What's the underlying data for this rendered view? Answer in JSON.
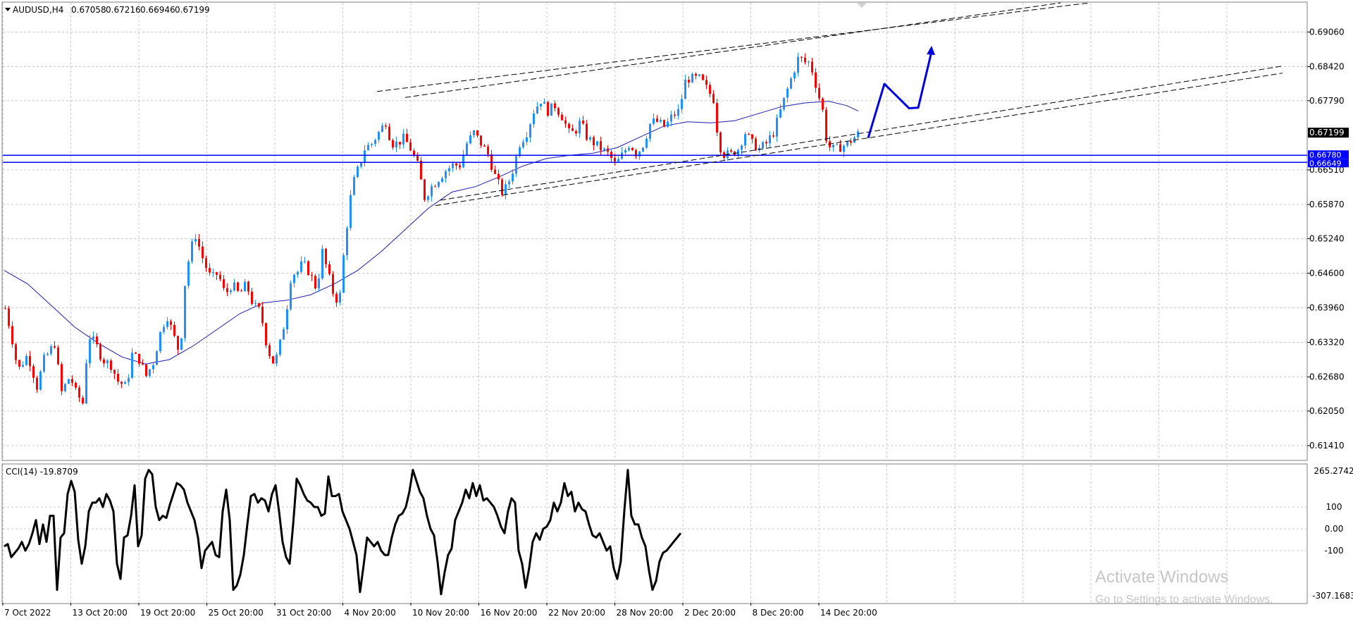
{
  "header": {
    "symbol": "AUDUSD,H4",
    "open": "0.67058",
    "high": "0.67216",
    "low": "0.66946",
    "close": "0.67199"
  },
  "indicator": {
    "label": "CCI(14) -19.8709",
    "scale_labels": [
      "265.2742",
      "100",
      "0.00",
      "-100",
      "-307.1683"
    ]
  },
  "price_scale": {
    "labels": [
      "0.69060",
      "0.68420",
      "0.67790",
      "0.66510",
      "0.65870",
      "0.65240",
      "0.64600",
      "0.63960",
      "0.63320",
      "0.62680",
      "0.62050",
      "0.61410"
    ],
    "current_price": "0.67199",
    "level_1": "0.66780",
    "level_2": "0.66649"
  },
  "time_axis": {
    "labels": [
      "7 Oct 2022",
      "13 Oct 20:00",
      "19 Oct 20:00",
      "25 Oct 20:00",
      "31 Oct 20:00",
      "4 Nov 20:00",
      "10 Nov 20:00",
      "16 Nov 20:00",
      "22 Nov 20:00",
      "28 Nov 20:00",
      "2 Dec 20:00",
      "8 Dec 20:00",
      "14 Dec 20:00"
    ]
  },
  "watermark": {
    "line1": "Activate Windows",
    "line2": "Go to Settings to activate Windows."
  },
  "colors": {
    "bull": "#1e90ff",
    "bear": "#ff0000",
    "ma": "#1c1cb4",
    "hline": "#0000ff",
    "channel": "#000000",
    "cci": "#000000",
    "grid": "#c8c8c8",
    "arrow": "#0000dd"
  },
  "chart_data": {
    "type": "candlestick",
    "symbol": "AUDUSD",
    "timeframe": "H4",
    "price_range": [
      0.6115,
      0.696
    ],
    "horizontal_levels": [
      0.6678,
      0.66649
    ],
    "last_price": 0.67199,
    "moving_average": [
      [
        0,
        0.6465
      ],
      [
        20,
        0.644
      ],
      [
        40,
        0.64
      ],
      [
        60,
        0.636
      ],
      [
        80,
        0.633
      ],
      [
        100,
        0.6305
      ],
      [
        120,
        0.6292
      ],
      [
        140,
        0.63
      ],
      [
        160,
        0.6325
      ],
      [
        180,
        0.6355
      ],
      [
        200,
        0.6385
      ],
      [
        220,
        0.6405
      ],
      [
        240,
        0.641
      ],
      [
        260,
        0.642
      ],
      [
        280,
        0.644
      ],
      [
        300,
        0.6465
      ],
      [
        320,
        0.65
      ],
      [
        340,
        0.654
      ],
      [
        360,
        0.658
      ],
      [
        380,
        0.661
      ],
      [
        400,
        0.662
      ],
      [
        420,
        0.6638
      ],
      [
        440,
        0.6658
      ],
      [
        460,
        0.6672
      ],
      [
        480,
        0.6678
      ],
      [
        500,
        0.6682
      ],
      [
        520,
        0.6692
      ],
      [
        540,
        0.6712
      ],
      [
        560,
        0.6732
      ],
      [
        580,
        0.674
      ],
      [
        600,
        0.6738
      ],
      [
        620,
        0.6742
      ],
      [
        640,
        0.6755
      ],
      [
        660,
        0.6768
      ],
      [
        680,
        0.6775
      ],
      [
        700,
        0.6778
      ],
      [
        715,
        0.677
      ],
      [
        725,
        0.676
      ]
    ],
    "cci": {
      "period": 14,
      "last": -19.8709,
      "range": [
        -307.1683,
        265.2742
      ],
      "values": [
        [
          0,
          -80
        ],
        [
          5,
          -70
        ],
        [
          10,
          -130
        ],
        [
          15,
          -110
        ],
        [
          20,
          -90
        ],
        [
          25,
          -60
        ],
        [
          30,
          -100
        ],
        [
          35,
          -70
        ],
        [
          40,
          -20
        ],
        [
          45,
          40
        ],
        [
          50,
          -70
        ],
        [
          55,
          20
        ],
        [
          60,
          -60
        ],
        [
          65,
          60
        ],
        [
          70,
          60
        ],
        [
          75,
          -280
        ],
        [
          80,
          -40
        ],
        [
          85,
          -20
        ],
        [
          90,
          160
        ],
        [
          95,
          220
        ],
        [
          100,
          170
        ],
        [
          105,
          -50
        ],
        [
          110,
          -160
        ],
        [
          115,
          -80
        ],
        [
          120,
          80
        ],
        [
          125,
          120
        ],
        [
          130,
          120
        ],
        [
          135,
          140
        ],
        [
          140,
          100
        ],
        [
          145,
          160
        ],
        [
          150,
          130
        ],
        [
          155,
          80
        ],
        [
          160,
          -160
        ],
        [
          165,
          -230
        ],
        [
          170,
          -40
        ],
        [
          175,
          -30
        ],
        [
          180,
          60
        ],
        [
          185,
          200
        ],
        [
          190,
          -80
        ],
        [
          195,
          -30
        ],
        [
          200,
          230
        ],
        [
          205,
          270
        ],
        [
          210,
          250
        ],
        [
          215,
          100
        ],
        [
          220,
          40
        ],
        [
          225,
          60
        ],
        [
          230,
          50
        ],
        [
          235,
          110
        ],
        [
          240,
          160
        ],
        [
          245,
          210
        ],
        [
          250,
          200
        ],
        [
          255,
          180
        ],
        [
          260,
          120
        ],
        [
          265,
          80
        ],
        [
          270,
          40
        ],
        [
          275,
          -40
        ],
        [
          280,
          -180
        ],
        [
          285,
          -100
        ],
        [
          290,
          -80
        ],
        [
          295,
          -60
        ],
        [
          300,
          -120
        ],
        [
          305,
          -130
        ],
        [
          310,
          80
        ],
        [
          315,
          180
        ],
        [
          320,
          40
        ],
        [
          325,
          -280
        ],
        [
          330,
          -260
        ],
        [
          335,
          -210
        ],
        [
          340,
          -120
        ],
        [
          345,
          20
        ],
        [
          350,
          150
        ],
        [
          355,
          160
        ],
        [
          360,
          120
        ],
        [
          365,
          140
        ],
        [
          370,
          130
        ],
        [
          375,
          80
        ],
        [
          380,
          160
        ],
        [
          385,
          200
        ],
        [
          390,
          80
        ],
        [
          395,
          -60
        ],
        [
          400,
          -130
        ],
        [
          405,
          -160
        ],
        [
          410,
          20
        ],
        [
          415,
          230
        ],
        [
          420,
          200
        ],
        [
          425,
          160
        ],
        [
          430,
          130
        ],
        [
          435,
          120
        ],
        [
          440,
          100
        ],
        [
          445,
          100
        ],
        [
          450,
          60
        ],
        [
          455,
          70
        ],
        [
          460,
          240
        ],
        [
          465,
          150
        ],
        [
          470,
          150
        ],
        [
          475,
          160
        ],
        [
          480,
          80
        ],
        [
          485,
          40
        ],
        [
          490,
          0
        ],
        [
          495,
          -60
        ],
        [
          500,
          -120
        ],
        [
          505,
          -290
        ],
        [
          510,
          -170
        ],
        [
          515,
          -40
        ],
        [
          520,
          -60
        ],
        [
          525,
          -80
        ],
        [
          530,
          -60
        ],
        [
          535,
          -100
        ],
        [
          540,
          -120
        ],
        [
          545,
          -120
        ],
        [
          550,
          -40
        ],
        [
          555,
          20
        ],
        [
          560,
          60
        ],
        [
          565,
          70
        ],
        [
          570,
          100
        ],
        [
          575,
          170
        ],
        [
          580,
          270
        ],
        [
          585,
          220
        ],
        [
          590,
          170
        ],
        [
          595,
          140
        ],
        [
          600,
          60
        ],
        [
          605,
          0
        ],
        [
          610,
          -30
        ],
        [
          615,
          -150
        ],
        [
          620,
          -300
        ],
        [
          625,
          -200
        ],
        [
          630,
          -120
        ],
        [
          635,
          -90
        ],
        [
          640,
          40
        ],
        [
          645,
          80
        ],
        [
          650,
          120
        ],
        [
          655,
          180
        ],
        [
          660,
          140
        ],
        [
          665,
          210
        ],
        [
          670,
          150
        ],
        [
          675,
          200
        ],
        [
          680,
          130
        ],
        [
          685,
          140
        ],
        [
          690,
          120
        ],
        [
          695,
          100
        ],
        [
          700,
          60
        ],
        [
          705,
          10
        ],
        [
          710,
          -20
        ],
        [
          715,
          80
        ],
        [
          720,
          140
        ],
        [
          725,
          120
        ],
        [
          730,
          -100
        ],
        [
          735,
          -160
        ],
        [
          740,
          -270
        ],
        [
          745,
          -180
        ],
        [
          750,
          -60
        ],
        [
          755,
          -20
        ],
        [
          760,
          -50
        ],
        [
          765,
          0
        ],
        [
          770,
          10
        ],
        [
          775,
          40
        ],
        [
          780,
          120
        ],
        [
          785,
          80
        ],
        [
          790,
          120
        ],
        [
          795,
          210
        ],
        [
          800,
          150
        ],
        [
          805,
          170
        ],
        [
          810,
          80
        ],
        [
          815,
          120
        ],
        [
          820,
          90
        ],
        [
          825,
          80
        ],
        [
          830,
          20
        ],
        [
          835,
          -30
        ],
        [
          840,
          -40
        ],
        [
          845,
          -20
        ],
        [
          850,
          -60
        ],
        [
          855,
          -100
        ],
        [
          860,
          -80
        ],
        [
          865,
          -180
        ],
        [
          870,
          -230
        ],
        [
          875,
          -150
        ],
        [
          880,
          80
        ],
        [
          885,
          270
        ],
        [
          890,
          60
        ],
        [
          895,
          20
        ],
        [
          900,
          20
        ],
        [
          905,
          -40
        ],
        [
          910,
          -80
        ],
        [
          915,
          -190
        ],
        [
          920,
          -280
        ],
        [
          925,
          -240
        ],
        [
          930,
          -150
        ],
        [
          935,
          -110
        ],
        [
          940,
          -100
        ],
        [
          945,
          -80
        ],
        [
          950,
          -60
        ],
        [
          955,
          -40
        ],
        [
          960,
          -20
        ]
      ]
    }
  }
}
